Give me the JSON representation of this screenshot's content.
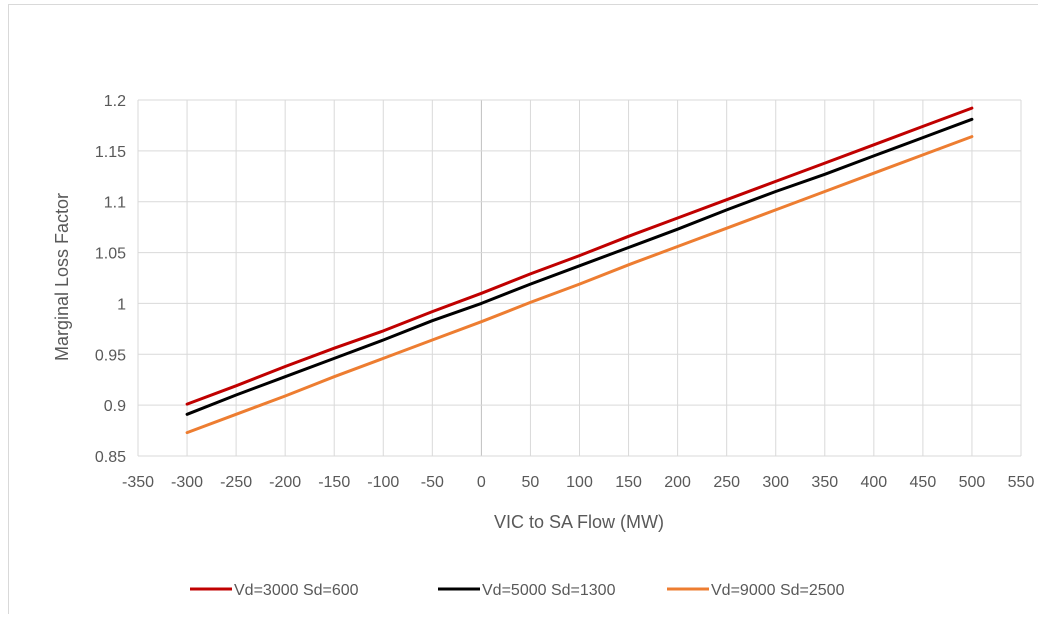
{
  "chart_data": {
    "type": "line",
    "title": "",
    "xlabel": "VIC to SA Flow (MW)",
    "ylabel": "Marginal Loss Factor",
    "xlim": [
      -350,
      550
    ],
    "ylim": [
      0.85,
      1.2
    ],
    "xticks": [
      -350,
      -300,
      -250,
      -200,
      -150,
      -100,
      -50,
      0,
      50,
      100,
      150,
      200,
      250,
      300,
      350,
      400,
      450,
      500,
      550
    ],
    "yticks": [
      "0.85",
      "0.9",
      "0.95",
      "1",
      "1.05",
      "1.1",
      "1.15",
      "1.2"
    ],
    "x": [
      -300,
      -250,
      -200,
      -150,
      -100,
      -50,
      0,
      50,
      100,
      150,
      200,
      250,
      300,
      350,
      400,
      450,
      500
    ],
    "series": [
      {
        "name": "Vd=3000 Sd=600",
        "color": "#c00000",
        "values": [
          0.901,
          0.919,
          0.938,
          0.956,
          0.973,
          0.992,
          1.01,
          1.029,
          1.047,
          1.066,
          1.084,
          1.102,
          1.12,
          1.138,
          1.156,
          1.174,
          1.192
        ]
      },
      {
        "name": "Vd=5000 Sd=1300",
        "color": "#000000",
        "values": [
          0.891,
          0.91,
          0.928,
          0.946,
          0.964,
          0.983,
          1.0,
          1.019,
          1.037,
          1.055,
          1.073,
          1.092,
          1.11,
          1.127,
          1.145,
          1.163,
          1.181
        ]
      },
      {
        "name": "Vd=9000 Sd=2500",
        "color": "#ed7d31",
        "values": [
          0.873,
          0.891,
          0.909,
          0.928,
          0.946,
          0.964,
          0.982,
          1.001,
          1.019,
          1.038,
          1.056,
          1.074,
          1.092,
          1.11,
          1.128,
          1.146,
          1.164
        ]
      }
    ],
    "grid": true,
    "legend": "bottom"
  }
}
